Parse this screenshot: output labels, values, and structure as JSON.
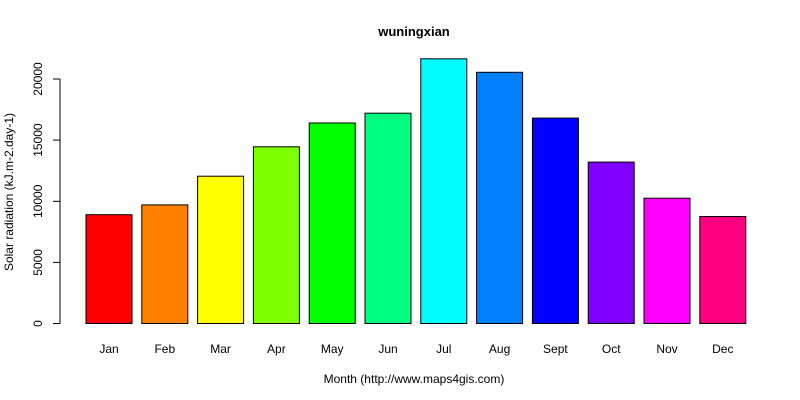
{
  "chart_data": {
    "type": "bar",
    "title": "wuningxian",
    "xlabel": "Month (http://www.maps4gis.com)",
    "ylabel": "Solar radiation (kJ.m-2.day-1)",
    "categories": [
      "Jan",
      "Feb",
      "Mar",
      "Apr",
      "May",
      "Jun",
      "Jul",
      "Aug",
      "Sept",
      "Oct",
      "Nov",
      "Dec"
    ],
    "values": [
      8900,
      9700,
      12050,
      14450,
      16400,
      17200,
      21650,
      20550,
      16800,
      13200,
      10250,
      8750
    ],
    "colors": [
      "#FF0000",
      "#FF8000",
      "#FFFF00",
      "#80FF00",
      "#00FF00",
      "#00FF80",
      "#00FFFF",
      "#0080FF",
      "#0000FF",
      "#8000FF",
      "#FF00FF",
      "#FF0080"
    ],
    "ylim": [
      0,
      22000
    ],
    "yticks": [
      0,
      5000,
      10000,
      15000,
      20000
    ],
    "grid": false,
    "legend": "none"
  }
}
